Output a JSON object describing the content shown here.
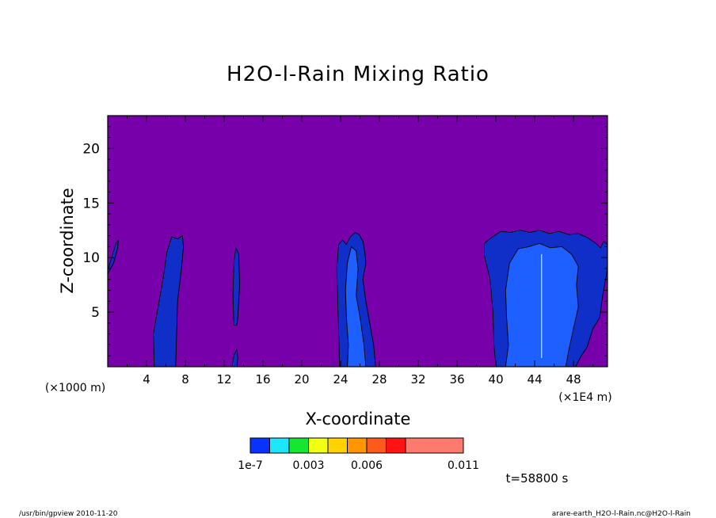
{
  "chart_data": {
    "type": "contour",
    "title": "H2O-l-Rain Mixing Ratio",
    "xlabel": "X-coordinate",
    "ylabel": "Z-coordinate",
    "x_unit_left": "(×1000 m)",
    "x_unit_right": "(×1E4 m)",
    "xlim": [
      0,
      51.5
    ],
    "ylim": [
      0,
      23
    ],
    "x_ticks": [
      4,
      8,
      12,
      16,
      20,
      24,
      28,
      32,
      36,
      40,
      44,
      48
    ],
    "y_ticks": [
      5,
      10,
      15,
      20
    ],
    "x_tick_labels": [
      "4",
      "8",
      "12",
      "16",
      "20",
      "24",
      "28",
      "32",
      "36",
      "40",
      "44",
      "48"
    ],
    "y_tick_labels": [
      "5",
      "10",
      "15",
      "20"
    ],
    "background_color": "#7700aa",
    "level_colors": [
      "#0f2fc8",
      "#1e5fff"
    ],
    "regions": [
      {
        "level": 0,
        "points": [
          [
            0.0,
            8.8
          ],
          [
            0.5,
            10.3
          ],
          [
            0.9,
            11.4
          ],
          [
            1.1,
            11.6
          ],
          [
            1.0,
            10.8
          ],
          [
            0.6,
            9.5
          ],
          [
            0.0,
            8.5
          ]
        ]
      },
      {
        "level": 0,
        "points": [
          [
            4.8,
            0
          ],
          [
            4.7,
            3
          ],
          [
            5.2,
            5.5
          ],
          [
            5.7,
            8
          ],
          [
            6.1,
            10.5
          ],
          [
            6.6,
            11.9
          ],
          [
            7.2,
            11.7
          ],
          [
            7.7,
            12.0
          ],
          [
            7.8,
            11.0
          ],
          [
            7.6,
            9
          ],
          [
            7.2,
            6
          ],
          [
            7.1,
            3
          ],
          [
            7.0,
            0
          ]
        ]
      },
      {
        "level": 0,
        "points": [
          [
            13.0,
            3.8
          ],
          [
            12.9,
            6.5
          ],
          [
            13.0,
            9.5
          ],
          [
            13.2,
            10.9
          ],
          [
            13.5,
            10.3
          ],
          [
            13.6,
            7.5
          ],
          [
            13.4,
            4.5
          ],
          [
            13.3,
            3.8
          ]
        ]
      },
      {
        "level": 0,
        "points": [
          [
            12.8,
            0
          ],
          [
            13.0,
            1.0
          ],
          [
            13.3,
            1.6
          ],
          [
            13.4,
            0.8
          ],
          [
            13.3,
            0
          ]
        ]
      },
      {
        "level": 0,
        "points": [
          [
            23.9,
            0
          ],
          [
            23.8,
            3
          ],
          [
            23.7,
            6
          ],
          [
            23.6,
            9
          ],
          [
            23.8,
            11.2
          ],
          [
            24.2,
            11.6
          ],
          [
            24.6,
            11.2
          ],
          [
            25.0,
            11.9
          ],
          [
            25.5,
            12.3
          ],
          [
            25.9,
            12.1
          ],
          [
            26.3,
            11.5
          ],
          [
            26.5,
            10.5
          ],
          [
            26.6,
            9.5
          ],
          [
            26.3,
            8
          ],
          [
            26.6,
            6
          ],
          [
            27.0,
            4
          ],
          [
            27.4,
            2
          ],
          [
            27.6,
            0
          ]
        ]
      },
      {
        "level": 1,
        "points": [
          [
            24.7,
            0
          ],
          [
            24.8,
            2
          ],
          [
            24.6,
            4.5
          ],
          [
            24.5,
            7
          ],
          [
            24.7,
            9.5
          ],
          [
            25.1,
            11.0
          ],
          [
            25.6,
            10.6
          ],
          [
            25.8,
            9.0
          ],
          [
            25.6,
            6.5
          ],
          [
            26.0,
            4.5
          ],
          [
            26.4,
            2
          ],
          [
            26.6,
            0
          ]
        ]
      },
      {
        "level": 0,
        "points": [
          [
            40.0,
            0
          ],
          [
            39.8,
            2
          ],
          [
            39.7,
            5
          ],
          [
            39.4,
            8
          ],
          [
            38.8,
            10.2
          ],
          [
            38.8,
            11.3
          ],
          [
            39.5,
            11.8
          ],
          [
            40.5,
            12.4
          ],
          [
            41.5,
            12.3
          ],
          [
            42.5,
            12.5
          ],
          [
            43.5,
            12.3
          ],
          [
            44.5,
            12.5
          ],
          [
            45.5,
            12.2
          ],
          [
            46.5,
            12.4
          ],
          [
            47.5,
            12.1
          ],
          [
            48.5,
            12.2
          ],
          [
            49.5,
            11.8
          ],
          [
            50.3,
            11.3
          ],
          [
            50.8,
            10.9
          ],
          [
            51.1,
            11.5
          ],
          [
            51.5,
            11.2
          ],
          [
            51.5,
            9
          ],
          [
            51.0,
            6.5
          ],
          [
            50.7,
            4.5
          ],
          [
            50.0,
            3.5
          ],
          [
            49.4,
            1.8
          ],
          [
            48.8,
            1.0
          ],
          [
            48.2,
            0
          ]
        ]
      },
      {
        "level": 1,
        "points": [
          [
            41.0,
            0
          ],
          [
            41.3,
            2
          ],
          [
            41.1,
            4.5
          ],
          [
            41.0,
            7
          ],
          [
            41.4,
            9.5
          ],
          [
            42.3,
            10.8
          ],
          [
            43.4,
            11.0
          ],
          [
            44.5,
            11.3
          ],
          [
            45.6,
            10.9
          ],
          [
            46.8,
            11.0
          ],
          [
            47.8,
            10.3
          ],
          [
            48.5,
            9.2
          ],
          [
            48.3,
            7.5
          ],
          [
            48.5,
            5.5
          ],
          [
            48.0,
            3.5
          ],
          [
            47.5,
            1.5
          ],
          [
            47.2,
            0
          ]
        ]
      }
    ]
  },
  "colorbar": {
    "colors": [
      "#0a32ff",
      "#1ee6ff",
      "#14e632",
      "#f0ff14",
      "#ffd200",
      "#ff9600",
      "#ff5a1e",
      "#ff1414",
      "#ff7a6e"
    ],
    "labels": [
      "1e-7",
      "0.003",
      "0.006",
      "0.011"
    ]
  },
  "time_label": "t=58800  s",
  "footer": {
    "left": "/usr/bin/gpview   2010-11-20",
    "right": "arare-earth_H2O-l-Rain.nc@H2O-l-Rain"
  }
}
